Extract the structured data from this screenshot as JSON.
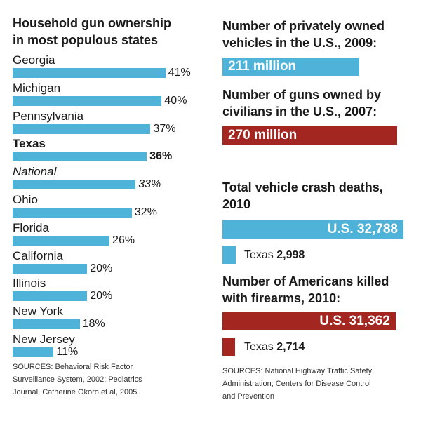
{
  "left": {
    "title_line1": "Household gun ownership",
    "title_line2": "in most populous states",
    "sources": [
      "SOURCES: Behavioral Risk Factor",
      "Surveillance System, 2002; Pediatrics",
      "Journal, Catherine Okoro et al, 2005"
    ]
  },
  "right": {
    "vehicles_title_line1": "Number of privately owned",
    "vehicles_title_line2": "vehicles in the U.S., 2009:",
    "vehicles_value": "211 million",
    "guns_title_line1": "Number of guns owned by",
    "guns_title_line2": "civilians in the U.S., 2007:",
    "guns_value": "270 million",
    "crash_title_line1": "Total vehicle crash deaths,",
    "crash_title_line2": "2010",
    "crash_us_label": "U.S. 32,788",
    "crash_texas_prefix": "Texas",
    "crash_texas_value": "2,998",
    "fire_title_line1": "Number of Americans killed",
    "fire_title_line2": "with firearms, 2010:",
    "fire_us_label": "U.S. 31,362",
    "fire_texas_prefix": "Texas",
    "fire_texas_value": "2,714",
    "sources": [
      "SOURCES: National Highway Traffic Safety",
      "Administration; Centers for Disease Control",
      "and Prevention"
    ]
  },
  "colors": {
    "blue": "#4fb3d9",
    "red": "#a32620"
  },
  "chart_data": [
    {
      "type": "bar",
      "orientation": "horizontal",
      "title": "Household gun ownership in most populous states",
      "categories": [
        "Georgia",
        "Michigan",
        "Pennsylvania",
        "Texas",
        "National",
        "Ohio",
        "Florida",
        "California",
        "Illinois",
        "New York",
        "New Jersey"
      ],
      "values": [
        41,
        40,
        37,
        36,
        33,
        32,
        26,
        20,
        20,
        18,
        11
      ],
      "value_labels": [
        "41%",
        "40%",
        "37%",
        "36%",
        "33%",
        "32%",
        "26%",
        "20%",
        "20%",
        "18%",
        "11%"
      ],
      "emphasis": {
        "Texas": "bold",
        "National": "italic"
      },
      "unit": "%"
    },
    {
      "type": "bar",
      "orientation": "horizontal",
      "title": "Number of privately owned vehicles in the U.S., 2009 vs Number of guns owned by civilians in the U.S., 2007",
      "categories": [
        "vehicles",
        "guns"
      ],
      "values": [
        211,
        270
      ],
      "value_labels": [
        "211 million",
        "270 million"
      ],
      "unit": "million"
    },
    {
      "type": "bar",
      "orientation": "horizontal",
      "title": "Total vehicle crash deaths, 2010",
      "categories": [
        "U.S.",
        "Texas"
      ],
      "values": [
        32788,
        2998
      ]
    },
    {
      "type": "bar",
      "orientation": "horizontal",
      "title": "Number of Americans killed with firearms, 2010:",
      "categories": [
        "U.S.",
        "Texas"
      ],
      "values": [
        31362,
        2714
      ]
    }
  ]
}
